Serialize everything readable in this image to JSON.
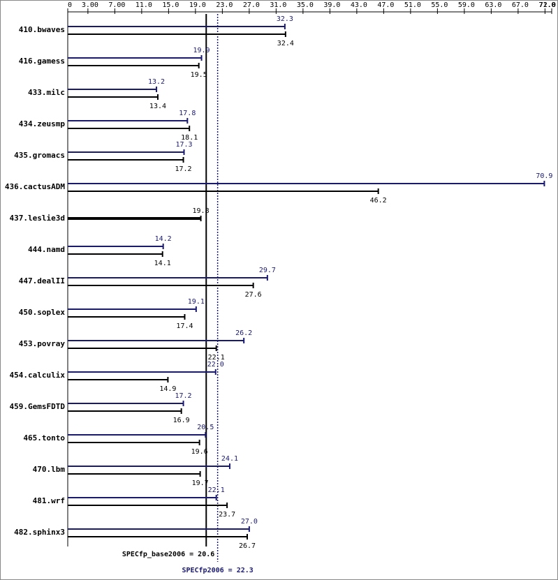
{
  "chart_data": {
    "type": "bar",
    "categories": [
      "410.bwaves",
      "416.gamess",
      "433.milc",
      "434.zeusmp",
      "435.gromacs",
      "436.cactusADM",
      "437.leslie3d",
      "444.namd",
      "447.dealII",
      "450.soplex",
      "453.povray",
      "454.calculix",
      "459.GemsFDTD",
      "465.tonto",
      "470.lbm",
      "481.wrf",
      "482.sphinx3"
    ],
    "series": [
      {
        "color": "#191970",
        "values": [
          32.3,
          19.9,
          13.2,
          17.8,
          17.3,
          70.9,
          null,
          14.2,
          29.7,
          19.1,
          26.2,
          22.0,
          17.2,
          20.5,
          24.1,
          22.1,
          27.0
        ],
        "value_labels": [
          "32.3",
          "19.9",
          "13.2",
          "17.8",
          "17.3",
          "70.9",
          null,
          "14.2",
          "29.7",
          "19.1",
          "26.2",
          "22.0",
          "17.2",
          "20.5",
          "24.1",
          "22.1",
          "27.0"
        ]
      },
      {
        "color": "#000000",
        "values": [
          32.4,
          19.5,
          13.4,
          18.1,
          17.2,
          46.2,
          19.8,
          14.1,
          27.6,
          17.4,
          22.1,
          14.9,
          16.9,
          19.6,
          19.7,
          23.7,
          26.7
        ],
        "value_labels": [
          "32.4",
          "19.5",
          "13.4",
          "18.1",
          "17.2",
          "46.2",
          "19.8",
          "14.1",
          "27.6",
          "17.4",
          "22.1",
          "14.9",
          "16.9",
          "19.6",
          "19.7",
          "23.7",
          "26.7"
        ]
      }
    ],
    "xlim": [
      0,
      72
    ],
    "xticks": [
      0,
      {
        "value": 3,
        "label": "3.00"
      },
      {
        "value": 7,
        "label": "7.00"
      },
      {
        "value": 11,
        "label": "11.0"
      },
      {
        "value": 15,
        "label": "15.0"
      },
      {
        "value": 19,
        "label": "19.0"
      },
      {
        "value": 23,
        "label": "23.0"
      },
      {
        "value": 27,
        "label": "27.0"
      },
      {
        "value": 31,
        "label": "31.0"
      },
      {
        "value": 35,
        "label": "35.0"
      },
      {
        "value": 39,
        "label": "39.0"
      },
      {
        "value": 43,
        "label": "43.0"
      },
      {
        "value": 47,
        "label": "47.0"
      },
      {
        "value": 51,
        "label": "51.0"
      },
      {
        "value": 55,
        "label": "55.0"
      },
      {
        "value": 59,
        "label": "59.0"
      },
      {
        "value": 63,
        "label": "63.0"
      },
      {
        "value": 67,
        "label": "67.0"
      },
      {
        "value": 71,
        "label": "71.0"
      },
      {
        "value": 72,
        "label": "72.0"
      }
    ],
    "reference_lines": [
      {
        "label": "SPECfp_base2006 = 20.6",
        "value": 20.6,
        "color": "#000000",
        "style": "solid"
      },
      {
        "label": "SPECfp2006 = 22.3",
        "value": 22.3,
        "color": "#191970",
        "style": "dotted"
      }
    ]
  }
}
